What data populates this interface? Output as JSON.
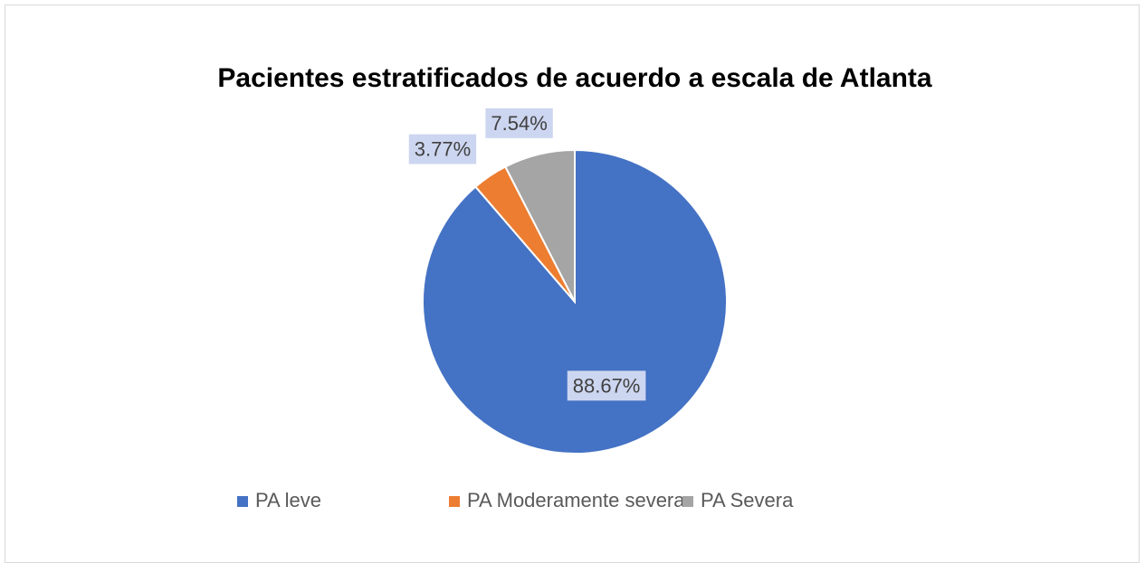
{
  "chart_data": {
    "type": "pie",
    "title": "Pacientes estratificados de acuerdo a escala de Atlanta",
    "categories": [
      "PA leve",
      "PA Moderamente severa",
      "PA Severa"
    ],
    "values": [
      88.67,
      3.77,
      7.54
    ],
    "value_labels": [
      "88.67%",
      "3.77%",
      "7.54%"
    ],
    "colors": [
      "#4472c4",
      "#ed7d31",
      "#a5a5a5"
    ],
    "legend": "bottom"
  }
}
